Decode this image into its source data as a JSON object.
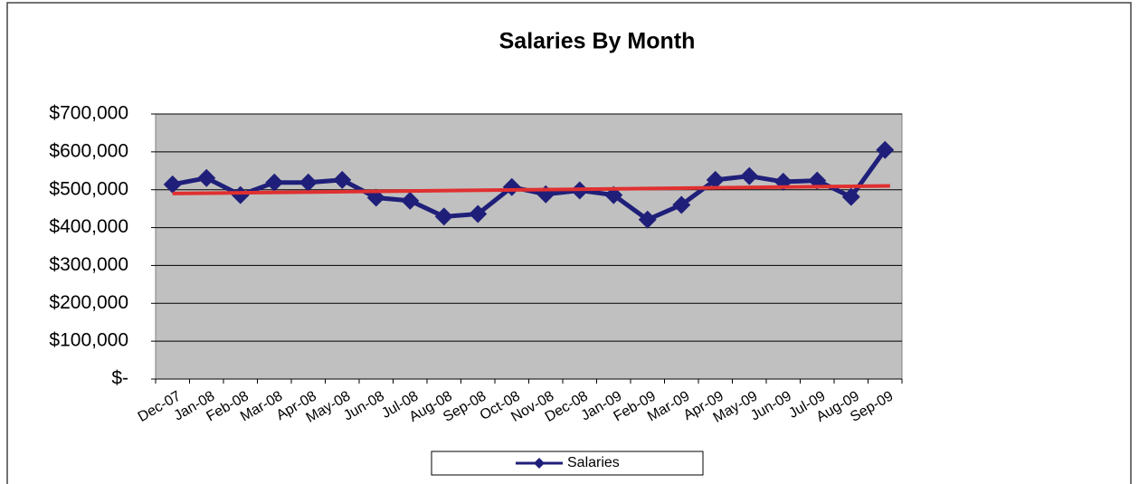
{
  "chart_data": {
    "type": "line",
    "title": "Salaries By Month",
    "categories": [
      "Dec-07",
      "Jan-08",
      "Feb-08",
      "Mar-08",
      "Apr-08",
      "May-08",
      "Jun-08",
      "Jul-08",
      "Aug-08",
      "Sep-08",
      "Oct-08",
      "Nov-08",
      "Dec-08",
      "Jan-09",
      "Feb-09",
      "Mar-09",
      "Apr-09",
      "May-09",
      "Jun-09",
      "Jul-09",
      "Aug-09",
      "Sep-09"
    ],
    "series": [
      {
        "name": "Salaries",
        "color": "#1f1f7a",
        "values": [
          514000,
          531000,
          486000,
          519000,
          519000,
          526000,
          479000,
          471000,
          429000,
          436000,
          507000,
          488000,
          498000,
          486000,
          421000,
          460000,
          526000,
          536000,
          521000,
          524000,
          481000,
          605000
        ]
      }
    ],
    "trendline": {
      "color": "#e03030",
      "start": 490000,
      "end": 510000
    },
    "ylim": [
      0,
      700000
    ],
    "yticks": [
      {
        "value": 0,
        "label": "$-"
      },
      {
        "value": 100000,
        "label": "$100,000"
      },
      {
        "value": 200000,
        "label": "$200,000"
      },
      {
        "value": 300000,
        "label": "$300,000"
      },
      {
        "value": 400000,
        "label": "$400,000"
      },
      {
        "value": 500000,
        "label": "$500,000"
      },
      {
        "value": 600000,
        "label": "$600,000"
      },
      {
        "value": 700000,
        "label": "$700,000"
      }
    ],
    "grid": true,
    "plot_background": "#c0c0c0",
    "legend": "bottom"
  }
}
